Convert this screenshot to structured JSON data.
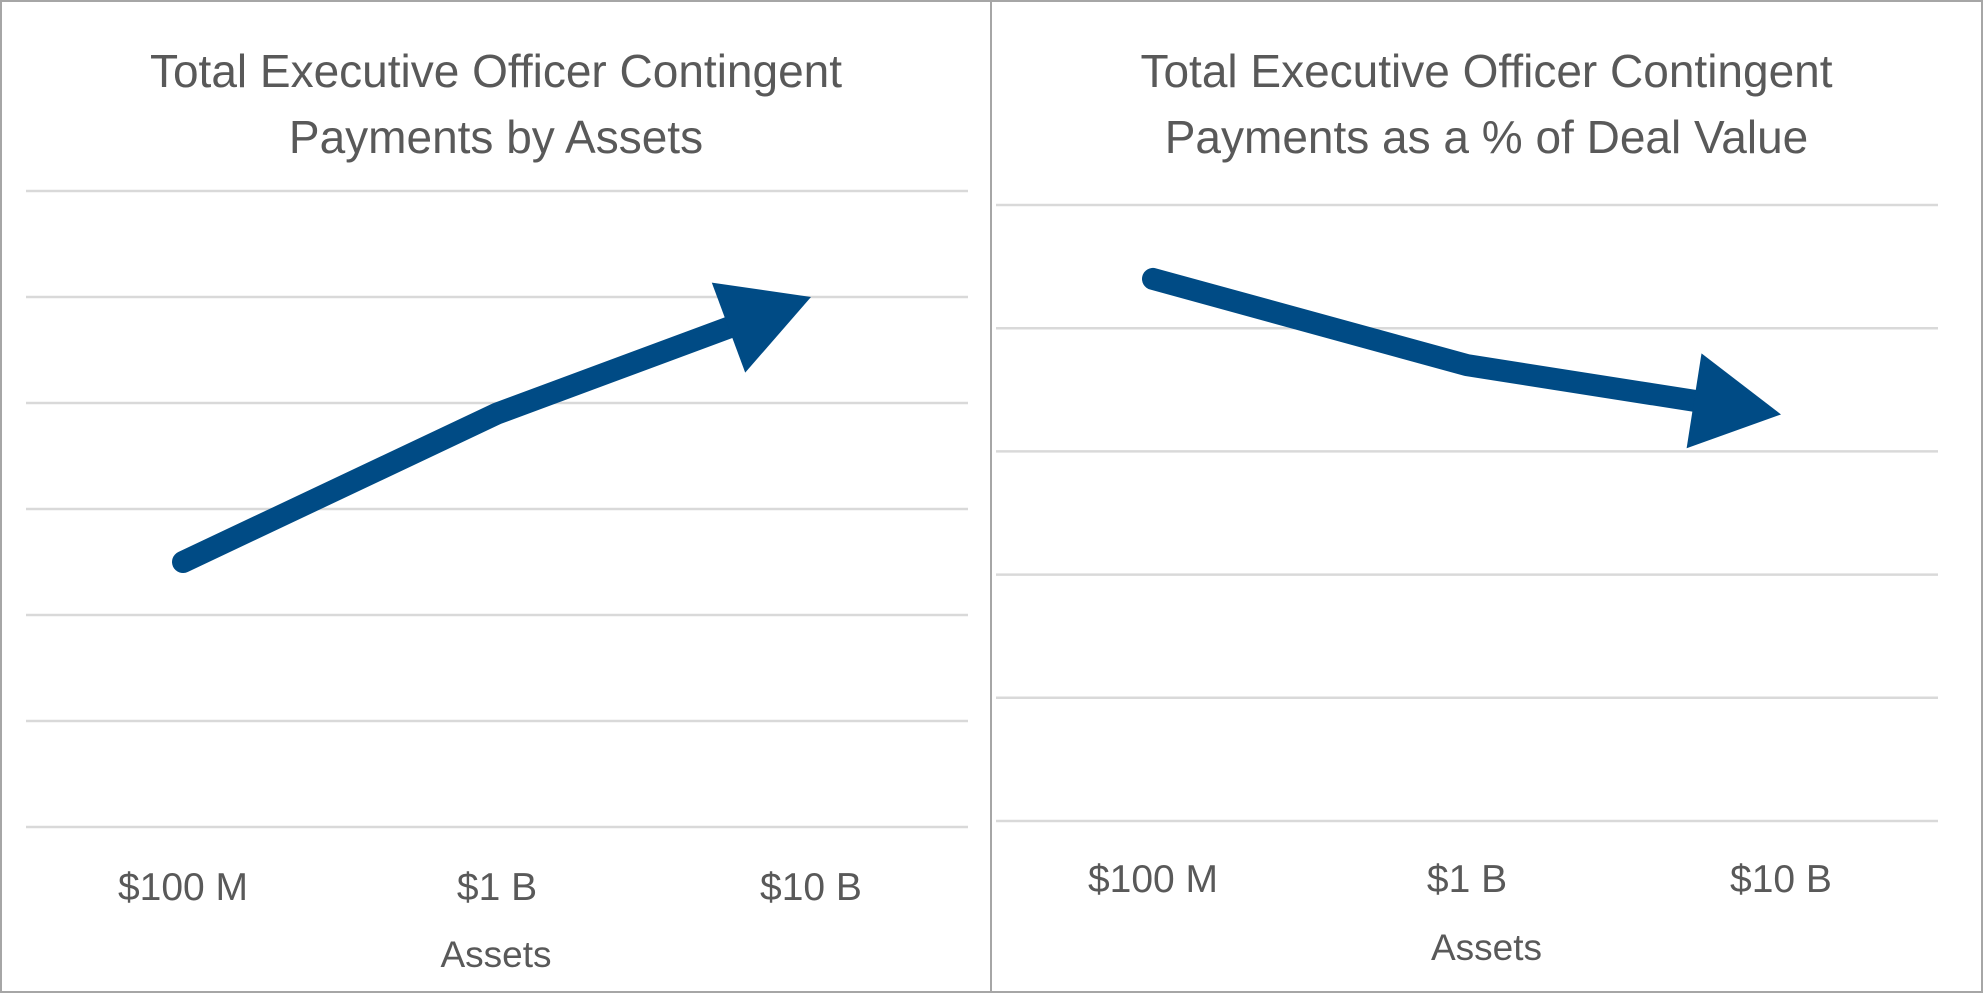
{
  "colors": {
    "arrow": "#004b85",
    "grid": "#d9d9d9",
    "text": "#595959",
    "border": "#a6a6a6"
  },
  "chart_data": [
    {
      "type": "line",
      "title": "Total Executive Officer Contingent\nPayments by Assets",
      "xlabel": "Assets",
      "ylabel": "",
      "categories": [
        "$100 M",
        "$1 B",
        "$10 B"
      ],
      "series": [
        {
          "values": [
            2.5,
            3.9,
            5.0
          ],
          "style": "arrow"
        }
      ],
      "ylim": [
        0,
        6
      ],
      "grid": true,
      "y_tick_labels_shown": false,
      "trend": "increasing"
    },
    {
      "type": "line",
      "title": "Total Executive Officer Contingent\nPayments as a % of Deal Value",
      "xlabel": "Assets",
      "ylabel": "",
      "categories": [
        "$100 M",
        "$1 B",
        "$10 B"
      ],
      "series": [
        {
          "values": [
            4.4,
            3.7,
            3.3
          ],
          "style": "arrow"
        }
      ],
      "ylim": [
        0,
        5
      ],
      "grid": true,
      "y_tick_labels_shown": false,
      "trend": "decreasing"
    }
  ]
}
